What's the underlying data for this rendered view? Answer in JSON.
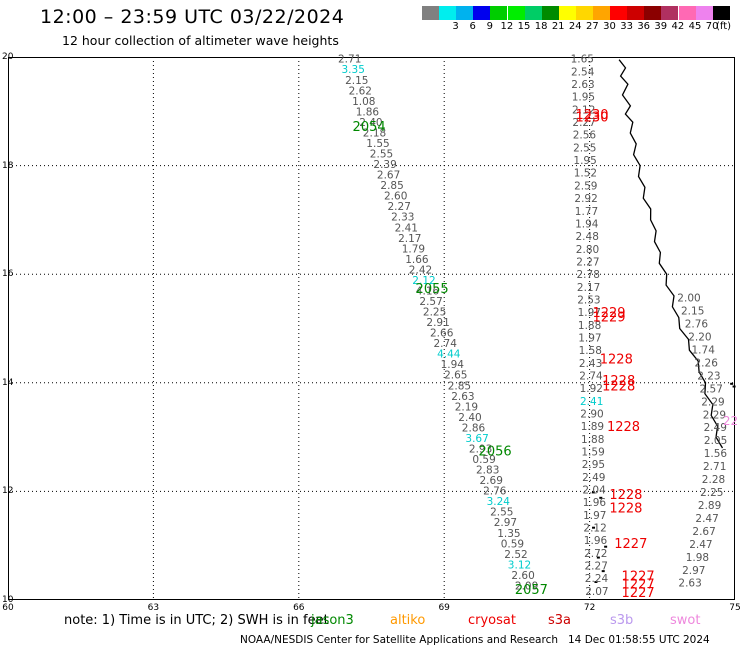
{
  "header": {
    "title": "12:00 – 23:59 UTC 03/22/2024",
    "subtitle": "12 hour collection of altimeter wave heights"
  },
  "colorbar": {
    "unit": "(ft)",
    "bins": [
      {
        "label": "",
        "color": "#808080"
      },
      {
        "label": "3",
        "color": "#00eeee"
      },
      {
        "label": "6",
        "color": "#00b2ee"
      },
      {
        "label": "9",
        "color": "#0000ee"
      },
      {
        "label": "12",
        "color": "#00cd00"
      },
      {
        "label": "15",
        "color": "#00ee00"
      },
      {
        "label": "18",
        "color": "#00cd66"
      },
      {
        "label": "21",
        "color": "#008b00"
      },
      {
        "label": "24",
        "color": "#ffff00"
      },
      {
        "label": "27",
        "color": "#ffd700"
      },
      {
        "label": "30",
        "color": "#ffa500"
      },
      {
        "label": "33",
        "color": "#ff0000"
      },
      {
        "label": "36",
        "color": "#cd0000"
      },
      {
        "label": "39",
        "color": "#8b0000"
      },
      {
        "label": "42",
        "color": "#b03060"
      },
      {
        "label": "45",
        "color": "#ff69b4"
      },
      {
        "label": "70",
        "color": "#ee82ee"
      },
      {
        "label": "",
        "color": "#000000"
      }
    ]
  },
  "map": {
    "y_ticks": [
      "20",
      "18",
      "16",
      "14",
      "12",
      "10"
    ],
    "x_ticks": [
      "60",
      "63",
      "66",
      "69",
      "72",
      "75"
    ],
    "track_colors": {
      "value": "#555555",
      "cyan": "#00cccc",
      "jason": "#008800",
      "s3": "#ee0000",
      "swot": "#ee88dd"
    },
    "track_a_values": [
      "2.71",
      "3.35",
      "2.15",
      "2.62",
      "1.08",
      "1.86",
      "2.40",
      "2.18",
      "1.55",
      "2.55",
      "2.39",
      "2.67",
      "2.85",
      "2.60",
      "2.27",
      "2.33",
      "2.41",
      "2.17",
      "1.79",
      "1.66",
      "2.42",
      "2.12",
      "4.16",
      "2.57",
      "2.25",
      "2.91",
      "2.66",
      "2.74",
      "4.44",
      "1.94",
      "2.65",
      "2.85",
      "2.63",
      "2.19",
      "2.40",
      "2.86",
      "3.67",
      "2.93",
      "0.59",
      "2.83",
      "2.69",
      "2.76",
      "3.24",
      "2.55",
      "2.97",
      "1.35",
      "0.59",
      "2.52",
      "3.12",
      "2.60",
      "2.09"
    ],
    "track_a_cyan": [
      1,
      21,
      28,
      36,
      42,
      48
    ],
    "track_a_times": [
      {
        "label": "2054",
        "lon": 67.45,
        "lat": 18.73
      },
      {
        "label": "2055",
        "lon": 68.75,
        "lat": 15.75
      },
      {
        "label": "2056",
        "lon": 70.05,
        "lat": 12.75
      },
      {
        "label": "2057",
        "lon": 70.8,
        "lat": 10.2
      }
    ],
    "track_b_values": [
      "1.65",
      "2.54",
      "2.63",
      "1.95",
      "2.12",
      "2.27",
      "2.56",
      "2.55",
      "1.95",
      "1.52",
      "2.59",
      "2.92",
      "1.77",
      "1.94",
      "2.48",
      "2.80",
      "2.27",
      "2.78",
      "2.17",
      "2.53",
      "1.97",
      "1.88",
      "1.97",
      "1.58",
      "2.43",
      "2.74",
      "1.92",
      "2.41",
      "2.90",
      "1.89",
      "1.88",
      "1.59",
      "2.95",
      "2.49",
      "2.04",
      "1.96",
      "1.97",
      "2.12",
      "1.96",
      "2.72",
      "2.27",
      "2.24",
      "2.07"
    ],
    "track_b_cyan": [
      27
    ],
    "track_b_times": [
      {
        "label": "1230",
        "lon": 72.05,
        "lat": 18.95
      },
      {
        "label": "1230",
        "lon": 72.05,
        "lat": 18.9
      },
      {
        "label": "1229",
        "lon": 72.4,
        "lat": 15.3
      },
      {
        "label": "1229",
        "lon": 72.4,
        "lat": 15.22
      },
      {
        "label": "1228",
        "lon": 72.55,
        "lat": 14.45
      },
      {
        "label": "1228",
        "lon": 72.6,
        "lat": 14.05
      },
      {
        "label": "1228",
        "lon": 72.6,
        "lat": 13.95
      },
      {
        "label": "1228",
        "lon": 72.7,
        "lat": 13.2
      },
      {
        "label": "1228",
        "lon": 72.75,
        "lat": 11.95
      },
      {
        "label": "1228",
        "lon": 72.75,
        "lat": 11.7
      },
      {
        "label": "1227",
        "lon": 72.85,
        "lat": 11.05
      },
      {
        "label": "1227",
        "lon": 73.0,
        "lat": 10.45
      },
      {
        "label": "1227",
        "lon": 73.0,
        "lat": 10.3
      },
      {
        "label": "1227",
        "lon": 73.0,
        "lat": 10.15
      }
    ],
    "track_c_values": [
      "2.00",
      "2.15",
      "2.76",
      "2.20",
      "1.74",
      "2.26",
      "2.23",
      "2.57",
      "2.29",
      "2.29",
      "2.49",
      "2.05",
      "1.56",
      "2.71",
      "2.28",
      "2.25",
      "2.89",
      "2.47",
      "2.67",
      "2.47",
      "1.98",
      "2.97",
      "2.63"
    ],
    "swot_label": "22"
  },
  "footer": {
    "note": "note:  1) Time is in UTC;  2) SWH is in feet",
    "missions": [
      {
        "name": "jason3",
        "color": "#008800"
      },
      {
        "name": "altiko",
        "color": "#ff9900"
      },
      {
        "name": "cryosat",
        "color": "#ee0000"
      },
      {
        "name": "s3a",
        "color": "#cc0000"
      },
      {
        "name": "s3b",
        "color": "#bb99ee"
      },
      {
        "name": "swot",
        "color": "#ee88dd"
      }
    ],
    "credit": "NOAA/NESDIS Center for Satellite Applications and Research",
    "timestamp": "14 Dec 01:58:55 UTC 2024"
  }
}
